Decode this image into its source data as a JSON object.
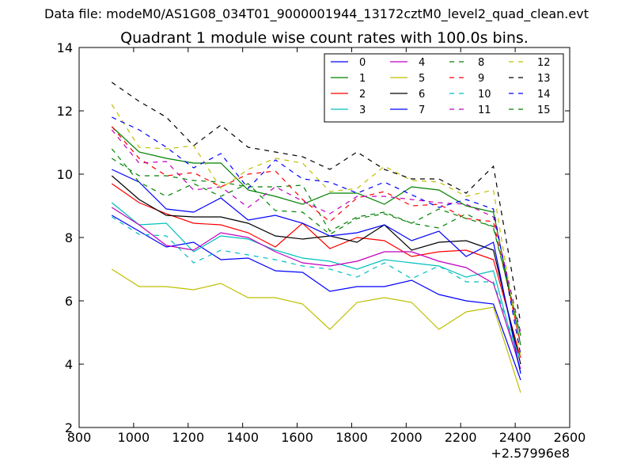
{
  "chart_data": {
    "type": "line",
    "suptitle": "Data file: modeM0/AS1G08_034T01_9000001944_13172cztM0_level2_quad_clean.evt",
    "title": "Quadrant 1 module wise count rates with 100.0s bins.",
    "xlabel": "",
    "ylabel": "",
    "x_offset_label": "+2.57996e8",
    "xlim": [
      800,
      2600
    ],
    "ylim": [
      2,
      14
    ],
    "xticks": [
      800,
      1000,
      1200,
      1400,
      1600,
      1800,
      2000,
      2200,
      2400,
      2600
    ],
    "yticks": [
      2,
      4,
      6,
      8,
      10,
      12,
      14
    ],
    "grid": false,
    "legend_position": "top-right",
    "legend_columns": 4,
    "x": [
      920,
      1020,
      1120,
      1220,
      1320,
      1420,
      1520,
      1620,
      1720,
      1820,
      1920,
      2020,
      2120,
      2220,
      2320,
      2420
    ],
    "series": [
      {
        "name": "0",
        "color": "#0000ff",
        "dash": "solid",
        "values": [
          8.7,
          8.2,
          7.7,
          7.85,
          7.3,
          7.35,
          6.95,
          6.9,
          6.3,
          6.45,
          6.45,
          6.65,
          6.2,
          6.0,
          5.9,
          3.5
        ]
      },
      {
        "name": "1",
        "color": "#008000",
        "dash": "solid",
        "values": [
          11.5,
          10.7,
          10.5,
          10.35,
          10.35,
          9.5,
          9.3,
          9.05,
          9.4,
          9.4,
          9.05,
          9.6,
          9.5,
          9.0,
          8.8,
          4.6
        ]
      },
      {
        "name": "2",
        "color": "#ff0000",
        "dash": "solid",
        "values": [
          9.7,
          9.1,
          8.75,
          8.45,
          8.4,
          8.15,
          7.7,
          8.45,
          7.65,
          8.0,
          7.9,
          7.4,
          7.55,
          7.6,
          7.3,
          4.2
        ]
      },
      {
        "name": "3",
        "color": "#00bfbf",
        "dash": "solid",
        "values": [
          9.1,
          8.4,
          8.45,
          7.55,
          8.05,
          7.95,
          7.6,
          7.35,
          7.25,
          7.0,
          7.3,
          7.2,
          7.1,
          6.75,
          6.95,
          3.75
        ]
      },
      {
        "name": "4",
        "color": "#bf00bf",
        "dash": "solid",
        "values": [
          8.95,
          8.4,
          7.75,
          7.6,
          8.15,
          8.0,
          7.55,
          7.2,
          7.1,
          7.25,
          7.55,
          7.55,
          7.25,
          7.05,
          6.55,
          3.85
        ]
      },
      {
        "name": "5",
        "color": "#bfbf00",
        "dash": "solid",
        "values": [
          7.0,
          6.45,
          6.45,
          6.35,
          6.55,
          6.1,
          6.1,
          5.9,
          5.1,
          5.95,
          6.1,
          5.95,
          5.1,
          5.65,
          5.8,
          3.1
        ]
      },
      {
        "name": "6",
        "color": "#000000",
        "dash": "solid",
        "values": [
          9.95,
          9.2,
          8.7,
          8.65,
          8.65,
          8.45,
          8.05,
          7.95,
          8.05,
          7.85,
          8.4,
          7.6,
          7.85,
          7.9,
          7.6,
          4.0
        ]
      },
      {
        "name": "7",
        "color": "#0000ff",
        "dash": "solid",
        "values": [
          10.15,
          9.75,
          8.9,
          8.8,
          9.25,
          8.55,
          8.7,
          8.45,
          8.05,
          8.15,
          8.4,
          7.9,
          8.2,
          7.4,
          7.85,
          3.7
        ]
      },
      {
        "name": "8",
        "color": "#008000",
        "dash": "dashed",
        "values": [
          10.5,
          9.95,
          9.95,
          9.8,
          9.75,
          9.6,
          9.6,
          9.65,
          8.2,
          8.65,
          8.8,
          8.45,
          8.3,
          8.75,
          8.3,
          4.9
        ]
      },
      {
        "name": "9",
        "color": "#ff0000",
        "dash": "dashed",
        "values": [
          11.5,
          10.5,
          9.95,
          10.05,
          9.6,
          10.0,
          10.1,
          9.2,
          8.5,
          9.25,
          9.45,
          9.0,
          9.05,
          8.6,
          8.5,
          4.65
        ]
      },
      {
        "name": "10",
        "color": "#00bfbf",
        "dash": "dashed",
        "values": [
          8.65,
          8.1,
          8.05,
          7.2,
          7.6,
          7.45,
          7.3,
          7.1,
          7.0,
          6.75,
          7.2,
          6.7,
          7.1,
          6.6,
          6.6,
          4.1
        ]
      },
      {
        "name": "11",
        "color": "#bf00bf",
        "dash": "dashed",
        "values": [
          11.4,
          10.35,
          10.4,
          9.5,
          9.6,
          8.95,
          9.6,
          9.15,
          8.75,
          9.3,
          9.3,
          9.2,
          9.1,
          9.05,
          8.65,
          5.0
        ]
      },
      {
        "name": "12",
        "color": "#bfbf00",
        "dash": "dashed",
        "values": [
          12.2,
          10.85,
          10.8,
          10.9,
          9.55,
          10.15,
          10.5,
          10.35,
          9.45,
          9.55,
          10.25,
          9.8,
          9.75,
          9.3,
          9.5,
          4.3
        ]
      },
      {
        "name": "13",
        "color": "#000000",
        "dash": "dashed",
        "values": [
          12.9,
          12.3,
          11.8,
          10.9,
          11.55,
          10.85,
          10.7,
          10.55,
          10.15,
          10.7,
          10.15,
          9.85,
          9.85,
          9.4,
          10.25,
          5.3
        ]
      },
      {
        "name": "14",
        "color": "#0000ff",
        "dash": "dashed",
        "values": [
          11.8,
          11.4,
          10.85,
          10.2,
          10.65,
          9.55,
          10.45,
          9.85,
          9.75,
          9.4,
          9.75,
          9.35,
          8.95,
          9.2,
          8.9,
          4.3
        ]
      },
      {
        "name": "15",
        "color": "#008000",
        "dash": "dashed",
        "values": [
          10.8,
          9.75,
          9.3,
          9.7,
          9.3,
          9.7,
          8.85,
          8.8,
          8.1,
          8.6,
          8.75,
          8.45,
          8.9,
          8.6,
          8.35,
          4.9
        ]
      }
    ]
  }
}
